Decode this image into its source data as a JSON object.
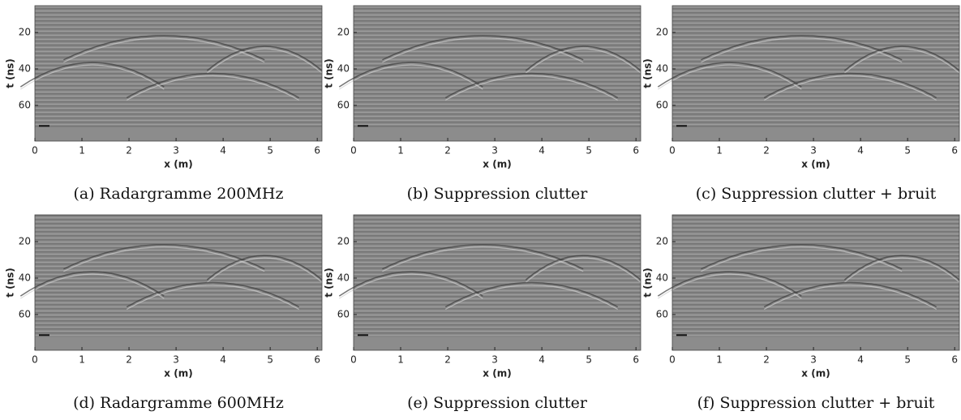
{
  "chart_data": [
    {
      "type": "image",
      "caption": "(a) Radargramme 200MHz",
      "xlabel": "x (m)",
      "ylabel": "t (ns)",
      "xlim": [
        0,
        6.1
      ],
      "ylim": [
        5.3,
        79.6
      ],
      "yreverse": true,
      "xticks": [
        0,
        1,
        2,
        3,
        4,
        5,
        6
      ],
      "yticks": [
        20,
        40,
        60
      ]
    },
    {
      "type": "image",
      "caption": "(b) Suppression clutter",
      "xlabel": "x (m)",
      "ylabel": "t (ns)",
      "xlim": [
        0,
        6.1
      ],
      "ylim": [
        5.3,
        79.6
      ],
      "yreverse": true,
      "xticks": [
        0,
        1,
        2,
        3,
        4,
        5,
        6
      ],
      "yticks": [
        20,
        40,
        60
      ]
    },
    {
      "type": "image",
      "caption": "(c) Suppression clutter + bruit",
      "xlabel": "x (m)",
      "ylabel": "t (ns)",
      "xlim": [
        0,
        6.1
      ],
      "ylim": [
        5.3,
        79.6
      ],
      "yreverse": true,
      "xticks": [
        0,
        1,
        2,
        3,
        4,
        5,
        6
      ],
      "yticks": [
        20,
        40,
        60
      ]
    },
    {
      "type": "image",
      "caption": "(d) Radargramme 600MHz",
      "xlabel": "x (m)",
      "ylabel": "t (ns)",
      "xlim": [
        0,
        6.1
      ],
      "ylim": [
        5.3,
        79.6
      ],
      "yreverse": true,
      "xticks": [
        0,
        1,
        2,
        3,
        4,
        5,
        6
      ],
      "yticks": [
        20,
        40,
        60
      ]
    },
    {
      "type": "image",
      "caption": "(e) Suppression clutter",
      "xlabel": "x (m)",
      "ylabel": "t (ns)",
      "xlim": [
        0,
        6.1
      ],
      "ylim": [
        5.3,
        79.6
      ],
      "yreverse": true,
      "xticks": [
        0,
        1,
        2,
        3,
        4,
        5,
        6
      ],
      "yticks": [
        20,
        40,
        60
      ]
    },
    {
      "type": "image",
      "caption": "(f) Suppression clutter + bruit",
      "xlabel": "x (m)",
      "ylabel": "t (ns)",
      "xlim": [
        0,
        6.1
      ],
      "ylim": [
        5.3,
        79.6
      ],
      "yreverse": true,
      "xticks": [
        0,
        1,
        2,
        3,
        4,
        5,
        6
      ],
      "yticks": [
        20,
        40,
        60
      ]
    }
  ]
}
